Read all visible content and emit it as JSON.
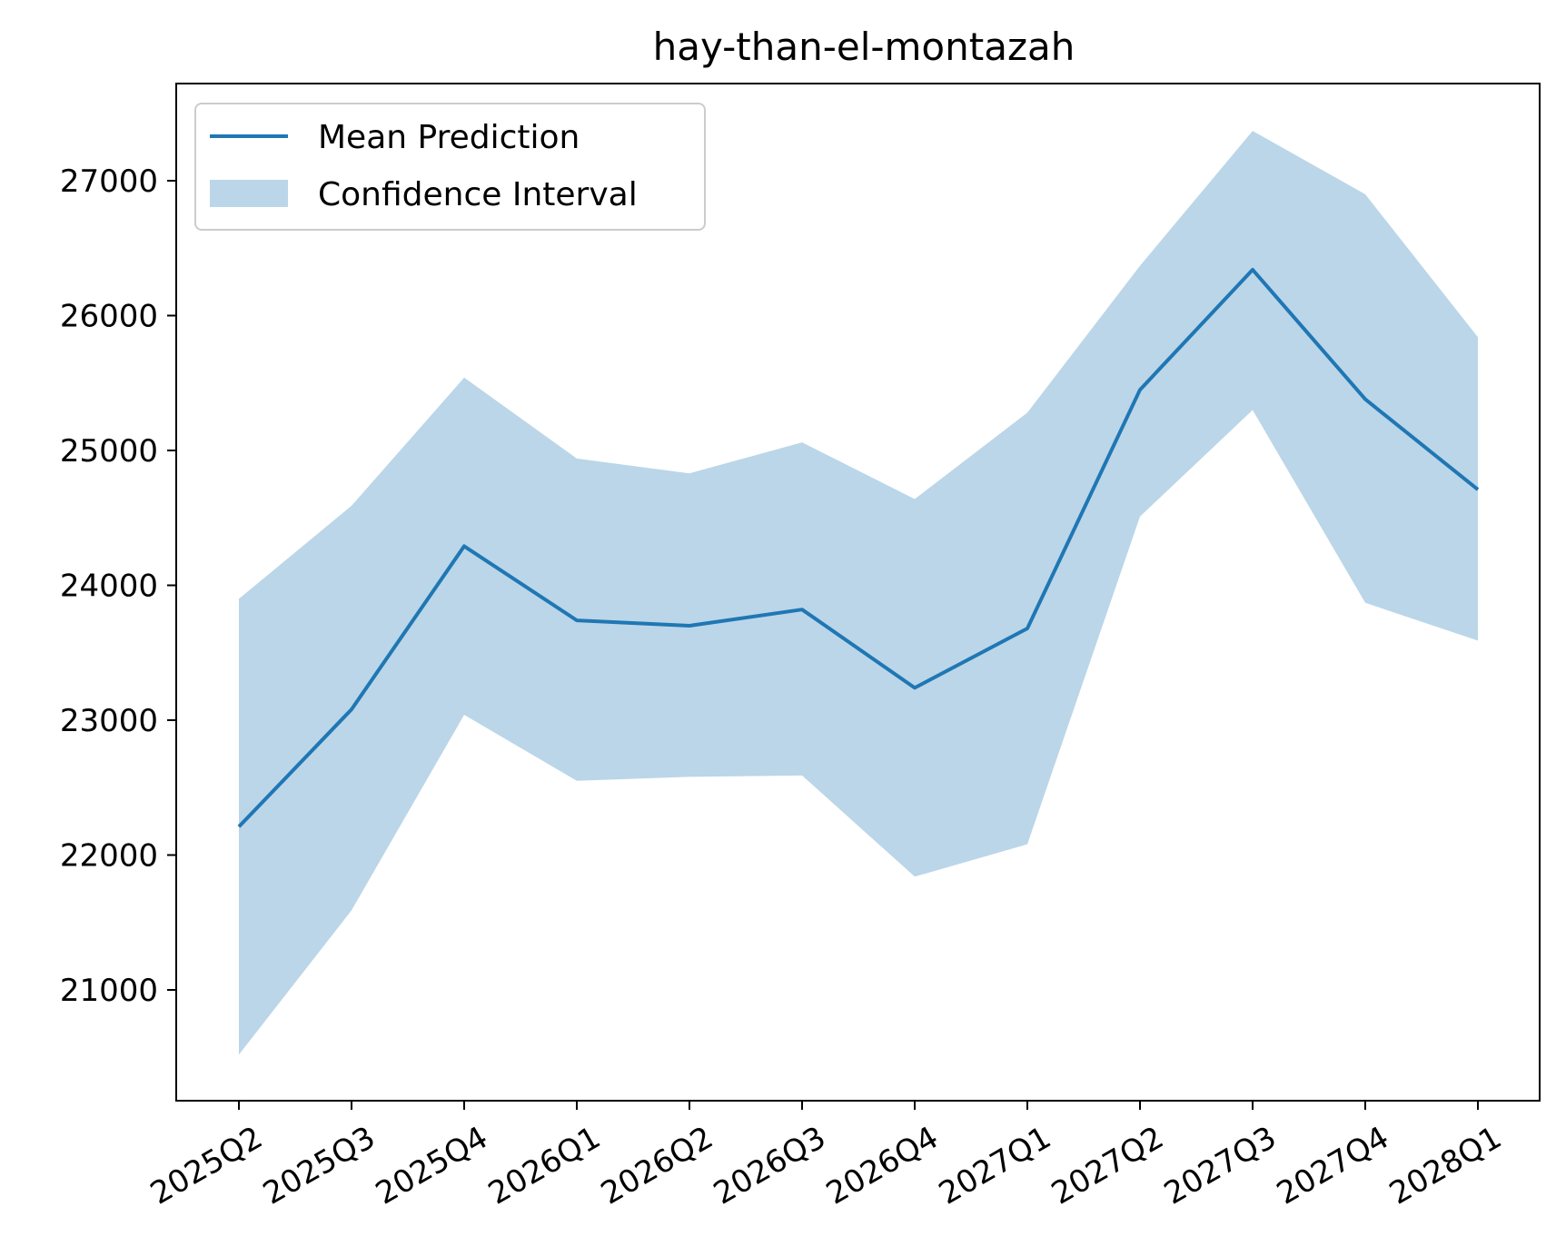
{
  "chart_data": {
    "type": "line",
    "title": "hay-than-el-montazah",
    "xlabel": "",
    "ylabel": "",
    "categories": [
      "2025Q2",
      "2025Q3",
      "2025Q4",
      "2026Q1",
      "2026Q2",
      "2026Q3",
      "2026Q4",
      "2027Q1",
      "2027Q2",
      "2027Q3",
      "2027Q4",
      "2028Q1"
    ],
    "series": [
      {
        "name": "Mean Prediction",
        "type": "line",
        "color": "#1f77b4",
        "values": [
          22210,
          23080,
          24290,
          23740,
          23700,
          23820,
          23240,
          23680,
          25450,
          26340,
          25380,
          24710
        ]
      },
      {
        "name": "Confidence Interval",
        "type": "band",
        "color": "#1f77b4",
        "opacity": 0.3,
        "lower": [
          20520,
          21590,
          23040,
          22550,
          22580,
          22590,
          21840,
          22080,
          24510,
          25300,
          23870,
          23590
        ],
        "upper": [
          23900,
          24590,
          25540,
          24940,
          24830,
          25060,
          24640,
          25280,
          26370,
          27370,
          26900,
          25840
        ]
      }
    ],
    "yticks": [
      21000,
      22000,
      23000,
      24000,
      25000,
      26000,
      27000
    ],
    "ylim": [
      20160,
      27730
    ],
    "grid": false,
    "legend_position": "upper left"
  }
}
